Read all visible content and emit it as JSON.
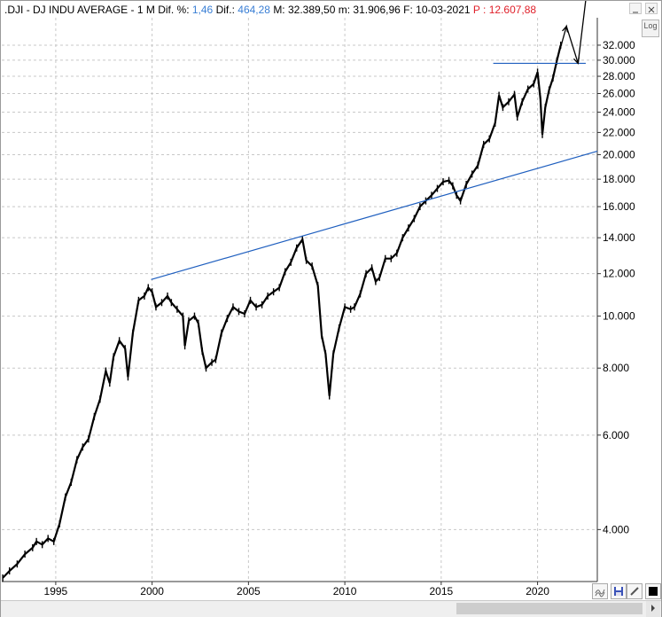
{
  "header": {
    "symbol": ".DJI",
    "name": "- DJ INDU AVERAGE -",
    "period": "1 M",
    "dif_pct_label": "Dif. %:",
    "dif_pct_value": "1,46",
    "dif_label": "Dif.:",
    "dif_value": "464,28",
    "max_label": "M:",
    "max_value": "32.389,50",
    "min_label": "m:",
    "min_value": "31.906,96",
    "date_label": "F:",
    "date_value": "10-03-2021",
    "price_label": "P :",
    "price_value": "12.607,88"
  },
  "log_button": "Log",
  "colors": {
    "value_blue": "#3a7fd5",
    "value_red": "#e0202a",
    "trendline": "#1f5fbf",
    "candle": "#000000"
  },
  "chart_data": {
    "type": "line",
    "scale": "log",
    "ylim": [
      3200,
      36000
    ],
    "xlim": [
      1992.2,
      2023.1
    ],
    "yticks": [
      4000,
      6000,
      8000,
      10000,
      12000,
      14000,
      16000,
      18000,
      20000,
      22000,
      24000,
      26000,
      28000,
      30000,
      32000
    ],
    "ytick_labels": [
      "4.000",
      "6.000",
      "8.000",
      "10.000",
      "12.000",
      "14.000",
      "16.000",
      "18.000",
      "20.000",
      "22.000",
      "24.000",
      "26.000",
      "28.000",
      "30.000",
      "32.000"
    ],
    "xticks": [
      1995,
      2000,
      2005,
      2010,
      2015,
      2020
    ],
    "xtick_labels": [
      "1995",
      "2000",
      "2005",
      "2010",
      "2015",
      "2020"
    ],
    "grid": true,
    "series": [
      {
        "x": [
          1992.25,
          1992.6,
          1993.0,
          1993.4,
          1993.8,
          1994.0,
          1994.3,
          1994.6,
          1994.9,
          1995.2,
          1995.5,
          1995.8,
          1996.1,
          1996.4,
          1996.7,
          1997.0,
          1997.3,
          1997.6,
          1997.8,
          1998.0,
          1998.3,
          1998.6,
          1998.75,
          1999.0,
          1999.3,
          1999.6,
          1999.8,
          2000.0,
          2000.2,
          2000.5,
          2000.8,
          2001.0,
          2001.3,
          2001.6,
          2001.7,
          2001.9,
          2002.2,
          2002.4,
          2002.6,
          2002.8,
          2003.1,
          2003.3,
          2003.6,
          2003.9,
          2004.2,
          2004.5,
          2004.8,
          2005.1,
          2005.4,
          2005.7,
          2006.0,
          2006.3,
          2006.6,
          2006.9,
          2007.2,
          2007.5,
          2007.8,
          2008.0,
          2008.3,
          2008.6,
          2008.8,
          2009.0,
          2009.2,
          2009.4,
          2009.7,
          2010.0,
          2010.3,
          2010.5,
          2010.8,
          2011.1,
          2011.4,
          2011.6,
          2011.8,
          2012.1,
          2012.4,
          2012.7,
          2013.0,
          2013.3,
          2013.6,
          2013.9,
          2014.2,
          2014.5,
          2014.8,
          2015.1,
          2015.4,
          2015.6,
          2015.8,
          2016.0,
          2016.3,
          2016.6,
          2016.9,
          2017.2,
          2017.5,
          2017.8,
          2018.0,
          2018.2,
          2018.5,
          2018.8,
          2018.95,
          2019.2,
          2019.5,
          2019.8,
          2020.0,
          2020.15,
          2020.25,
          2020.4,
          2020.6,
          2020.8,
          2021.0,
          2021.2
        ],
        "values": [
          3250,
          3350,
          3450,
          3600,
          3700,
          3800,
          3750,
          3850,
          3800,
          4100,
          4600,
          4900,
          5400,
          5700,
          5900,
          6500,
          7000,
          7900,
          7500,
          8400,
          9000,
          8700,
          7700,
          9300,
          10700,
          10900,
          11300,
          11100,
          10400,
          10600,
          10900,
          10600,
          10300,
          10000,
          8800,
          9800,
          10000,
          9700,
          8600,
          8000,
          8200,
          8300,
          9300,
          9900,
          10400,
          10200,
          10100,
          10700,
          10400,
          10500,
          10900,
          11100,
          11300,
          12100,
          12600,
          13400,
          13900,
          12700,
          12400,
          11400,
          9200,
          8500,
          7100,
          8500,
          9500,
          10400,
          10300,
          10400,
          11000,
          12000,
          12300,
          11600,
          11800,
          12800,
          12800,
          13100,
          14000,
          14600,
          15200,
          16000,
          16400,
          16800,
          17300,
          17800,
          17900,
          17500,
          16800,
          16400,
          17600,
          18400,
          19100,
          20900,
          21400,
          22900,
          25800,
          24500,
          25100,
          25900,
          23500,
          25100,
          26500,
          27100,
          28500,
          25400,
          21800,
          24500,
          26400,
          27800,
          29900,
          32000
        ]
      }
    ],
    "trendlines": [
      {
        "from": [
          1999.95,
          11700
        ],
        "to": [
          2023.1,
          20300
        ]
      },
      {
        "from": [
          2017.7,
          29600
        ],
        "to": [
          2022.5,
          29600
        ]
      }
    ],
    "arrows": [
      {
        "points": [
          [
            2021.0,
            29900
          ],
          [
            2021.5,
            34700
          ],
          [
            2022.1,
            29600
          ],
          [
            2022.65,
            43000
          ]
        ]
      }
    ]
  }
}
